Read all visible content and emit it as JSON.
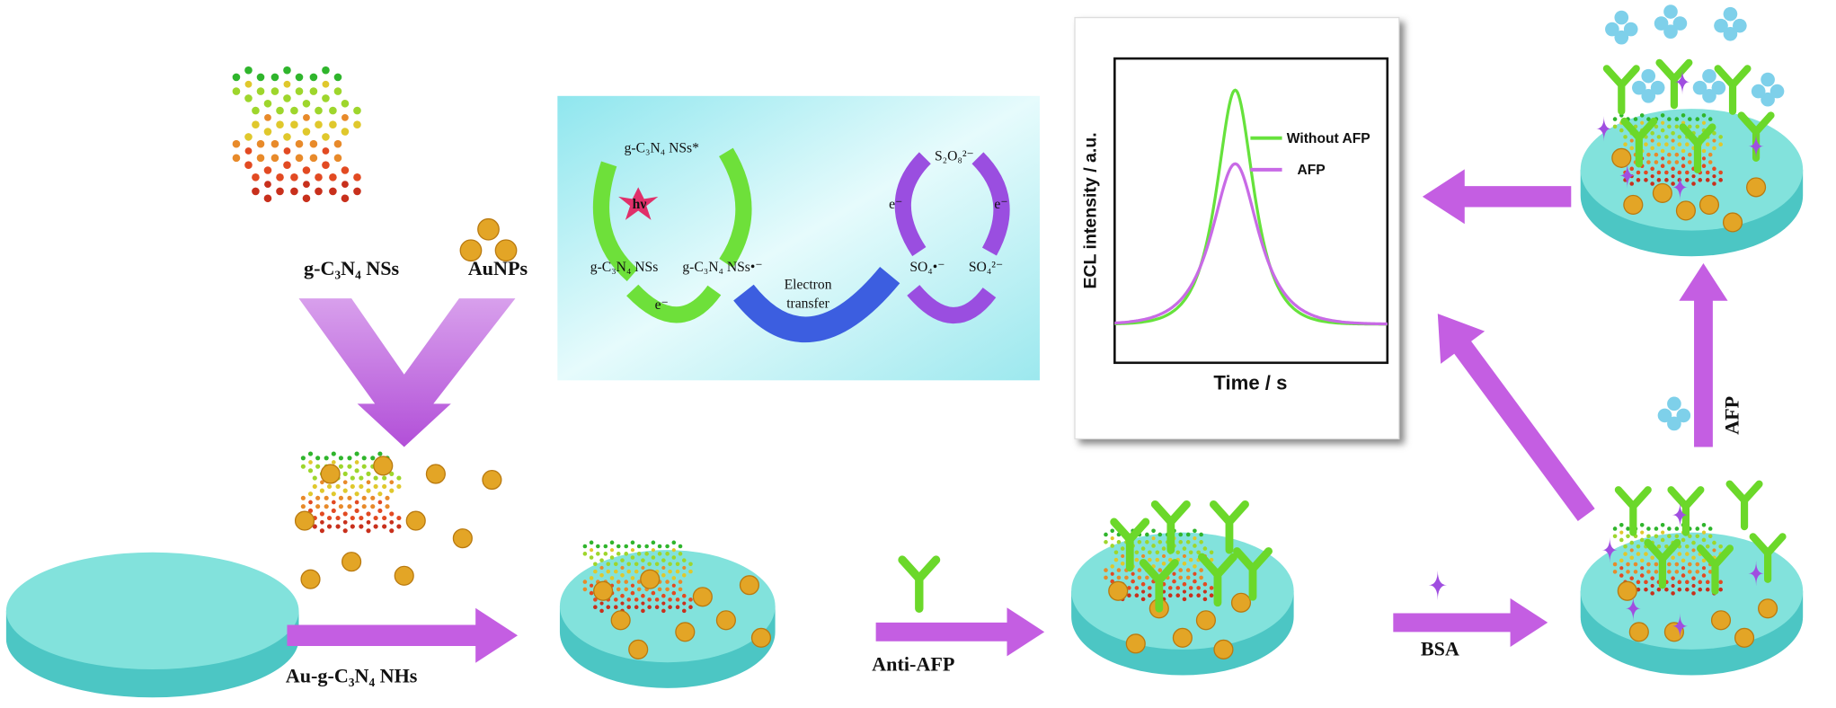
{
  "labels": {
    "nanosheets": "g-C₃N₄ NSs",
    "gold_particles": "AuNPs",
    "hybrid": "Au-g-C₃N₄ NHs",
    "antibody": "Anti-AFP",
    "blocker": "BSA",
    "antigen": "AFP"
  },
  "mechanism": {
    "excited": "g-C₃N₄ NSs*",
    "photon": "hν",
    "ground": "g-C₃N₄ NSs",
    "anion": "g-C₃N₄ NSs•⁻",
    "electron_left": "e⁻",
    "transfer": [
      "Electron",
      "transfer"
    ],
    "persulfate": "S₂O₈²⁻",
    "electron_a": "e⁻",
    "electron_b": "e⁻",
    "radical": "SO₄•⁻",
    "sulfate": "SO₄²⁻"
  },
  "ecl_plot": {
    "y_label": "ECL intensity / a.u.",
    "x_label": "Time / s",
    "legend": [
      {
        "name": "Without AFP",
        "color": "#66e23c"
      },
      {
        "name": "AFP",
        "color": "#c86ae6"
      }
    ]
  }
}
